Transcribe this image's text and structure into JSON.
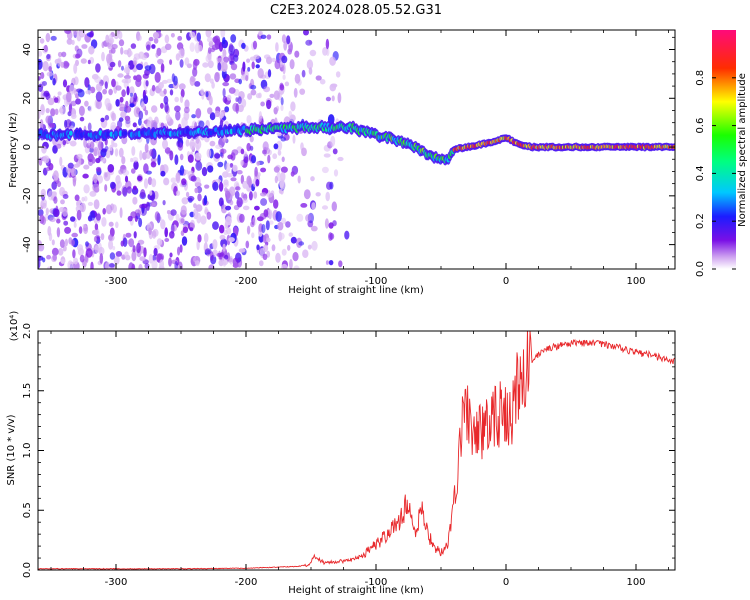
{
  "title": "C2E3.2024.028.05.52.G31",
  "colors": {
    "snr_line": "#e8282b",
    "background": "#ffffff"
  },
  "chart_data": [
    {
      "type": "heatmap",
      "xlabel": "Height of straight line (km)",
      "ylabel": "Frequency (Hz)",
      "xlim": [
        -360,
        130
      ],
      "ylim": [
        -50,
        48
      ],
      "x_ticks": [
        -300,
        -200,
        -100,
        0,
        100
      ],
      "y_ticks": [
        -40,
        -20,
        0,
        20,
        40
      ],
      "colorbar": {
        "label": "Normalized spectral amplitude",
        "range": [
          0,
          1
        ],
        "ticks": [
          "0.0",
          "0.2",
          "0.4",
          "0.6",
          "0.8"
        ],
        "ticks_values": [
          0.0,
          0.2,
          0.4,
          0.6,
          0.8
        ],
        "colormap": "rainbow (white-violet-blue-cyan-green-yellow-red-magenta)"
      },
      "ridge": {
        "x": [
          -360,
          -300,
          -250,
          -200,
          -150,
          -120,
          -100,
          -85,
          -70,
          -60,
          -50,
          -45,
          -40,
          -30,
          -20,
          -10,
          0,
          10,
          20,
          50,
          100,
          130
        ],
        "y": [
          5,
          5,
          6,
          7,
          8,
          8,
          5,
          3,
          0,
          -3,
          -5,
          -5,
          -1,
          0,
          1,
          2,
          4,
          1,
          0,
          0,
          0,
          0
        ]
      }
    },
    {
      "type": "line",
      "xlabel": "Height of straight line (km)",
      "ylabel": "SNR (10 * v/v)",
      "y_scale_label": "(x10⁴)",
      "xlim": [
        -360,
        130
      ],
      "ylim": [
        0,
        2.0
      ],
      "x_ticks": [
        -300,
        -200,
        -100,
        0,
        100
      ],
      "y_ticks": [
        0.0,
        0.5,
        1.0,
        1.5,
        2.0
      ],
      "y_tick_labels": [
        "0.0",
        "0.5",
        "1.0",
        "1.5",
        "2.0"
      ],
      "series": [
        {
          "x": [
            -360,
            -300,
            -250,
            -200,
            -160,
            -150,
            -148,
            -140,
            -120,
            -110,
            -100,
            -90,
            -80,
            -75,
            -70,
            -65,
            -60,
            -55,
            -50,
            -45,
            -40,
            -35,
            -30,
            -25,
            -20,
            -15,
            -10,
            -5,
            0,
            5,
            10,
            15,
            20,
            30,
            40,
            50,
            60,
            70,
            80,
            90,
            100,
            110,
            120,
            130
          ],
          "y": [
            0.01,
            0.01,
            0.01,
            0.015,
            0.03,
            0.05,
            0.12,
            0.06,
            0.08,
            0.12,
            0.22,
            0.3,
            0.45,
            0.6,
            0.32,
            0.5,
            0.3,
            0.18,
            0.15,
            0.2,
            0.55,
            1.1,
            1.4,
            1.1,
            1.15,
            1.3,
            1.25,
            1.3,
            1.25,
            1.35,
            1.55,
            1.65,
            1.75,
            1.85,
            1.87,
            1.9,
            1.9,
            1.9,
            1.88,
            1.85,
            1.82,
            1.8,
            1.77,
            1.75
          ]
        }
      ]
    }
  ]
}
